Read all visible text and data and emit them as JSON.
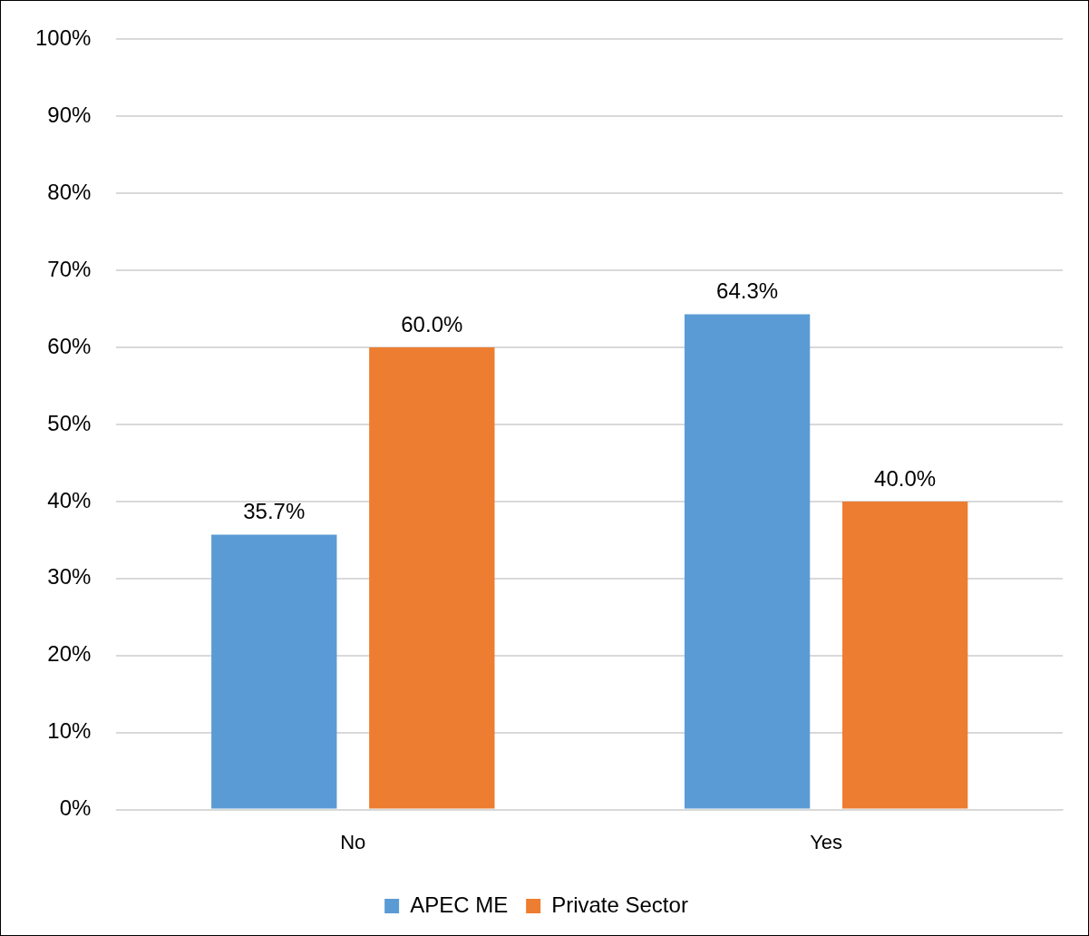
{
  "chart_data": {
    "type": "bar",
    "categories": [
      "No",
      "Yes"
    ],
    "series": [
      {
        "name": "APEC ME",
        "color": "#5b9bd5",
        "values": [
          35.7,
          64.3
        ],
        "value_labels": [
          "35.7%",
          "64.3%"
        ]
      },
      {
        "name": "Private Sector",
        "color": "#ed7d31",
        "values": [
          60.0,
          40.0
        ],
        "value_labels": [
          "60.0%",
          "40.0%"
        ]
      }
    ],
    "ylim": [
      0,
      100
    ],
    "yticks": [
      {
        "value": 0,
        "label": "0%"
      },
      {
        "value": 10,
        "label": "10%"
      },
      {
        "value": 20,
        "label": "20%"
      },
      {
        "value": 30,
        "label": "30%"
      },
      {
        "value": 40,
        "label": "40%"
      },
      {
        "value": 50,
        "label": "50%"
      },
      {
        "value": 60,
        "label": "60%"
      },
      {
        "value": 70,
        "label": "70%"
      },
      {
        "value": 80,
        "label": "80%"
      },
      {
        "value": 90,
        "label": "90%"
      },
      {
        "value": 100,
        "label": "100%"
      }
    ],
    "grid": "y",
    "legend": "bottom"
  }
}
